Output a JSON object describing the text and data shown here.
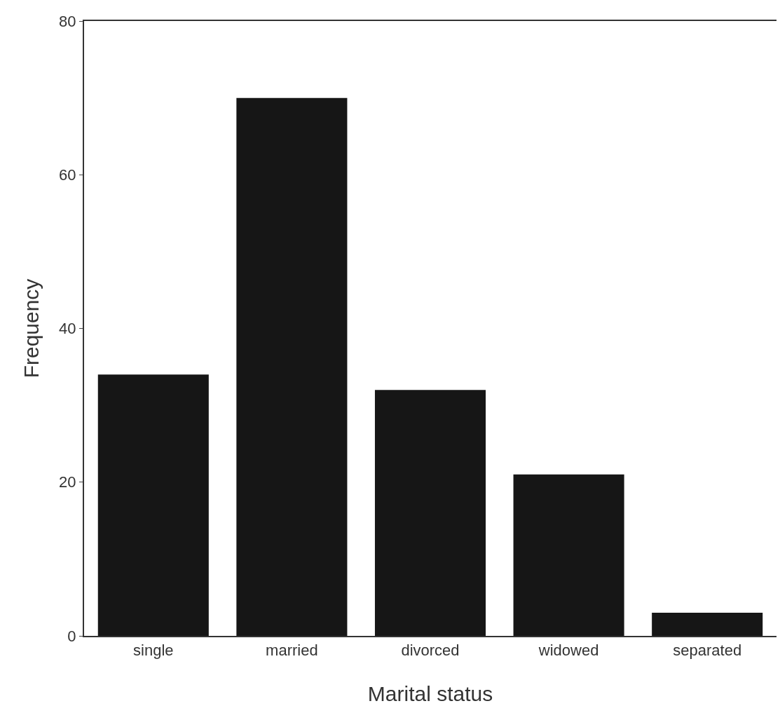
{
  "chart_data": {
    "type": "bar",
    "xlabel": "Marital status",
    "ylabel": "Frequency",
    "categories": [
      "single",
      "married",
      "divorced",
      "widowed",
      "separated"
    ],
    "values": [
      34,
      70,
      32,
      21,
      3
    ],
    "color": "#161616",
    "ylim": [
      0,
      80
    ],
    "yticks": [
      0,
      20,
      40,
      60,
      80
    ]
  }
}
